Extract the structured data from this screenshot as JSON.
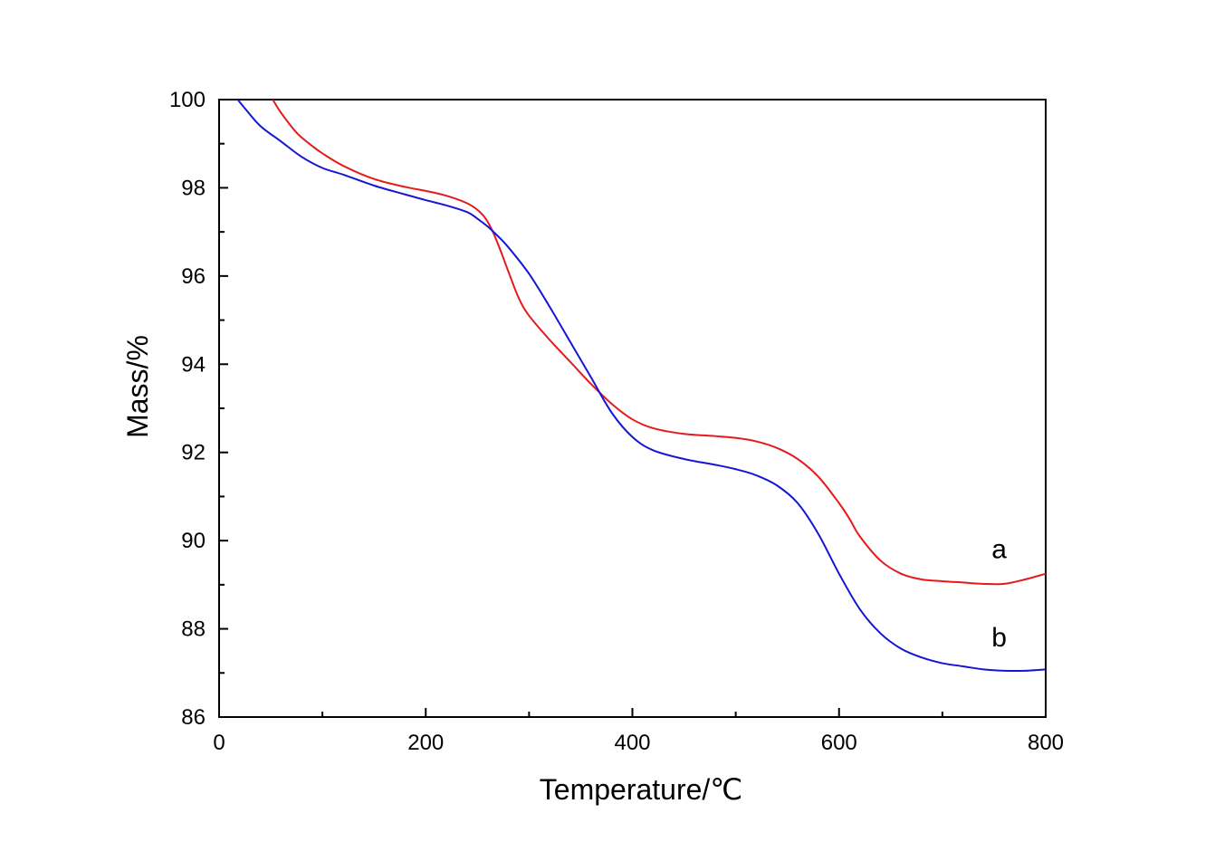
{
  "chart_data": {
    "type": "line",
    "title": "",
    "xlabel": "Temperature/℃",
    "ylabel": "Mass/%",
    "xlim": [
      0,
      800
    ],
    "ylim": [
      86,
      100
    ],
    "xticks": [
      0,
      200,
      400,
      600,
      800
    ],
    "yticks": [
      86,
      88,
      90,
      92,
      94,
      96,
      98,
      100
    ],
    "x_minor_step": 100,
    "y_minor_step": 1,
    "grid": false,
    "series": [
      {
        "name": "a",
        "color": "#e41a1c",
        "x": [
          52,
          60,
          75,
          90,
          100,
          120,
          150,
          180,
          200,
          220,
          240,
          250,
          258,
          265,
          272,
          280,
          290,
          300,
          320,
          340,
          360,
          380,
          400,
          420,
          450,
          480,
          500,
          520,
          540,
          560,
          580,
          600,
          610,
          620,
          640,
          660,
          680,
          700,
          720,
          740,
          760,
          780,
          800
        ],
        "y": [
          100,
          99.7,
          99.25,
          98.95,
          98.78,
          98.5,
          98.2,
          98.02,
          97.93,
          97.82,
          97.65,
          97.5,
          97.3,
          97.0,
          96.6,
          96.1,
          95.5,
          95.1,
          94.55,
          94.05,
          93.55,
          93.1,
          92.75,
          92.55,
          92.42,
          92.37,
          92.33,
          92.25,
          92.1,
          91.85,
          91.45,
          90.85,
          90.5,
          90.1,
          89.55,
          89.25,
          89.12,
          89.08,
          89.05,
          89.02,
          89.02,
          89.12,
          89.25
        ]
      },
      {
        "name": "b",
        "color": "#1515d6",
        "x": [
          18,
          25,
          40,
          60,
          80,
          100,
          120,
          150,
          180,
          200,
          220,
          240,
          250,
          260,
          270,
          280,
          300,
          320,
          340,
          360,
          380,
          400,
          420,
          450,
          480,
          500,
          520,
          540,
          560,
          580,
          600,
          620,
          640,
          660,
          680,
          700,
          720,
          740,
          760,
          780,
          800
        ],
        "y": [
          100,
          99.8,
          99.4,
          99.05,
          98.7,
          98.45,
          98.3,
          98.05,
          97.85,
          97.72,
          97.6,
          97.45,
          97.3,
          97.12,
          96.9,
          96.65,
          96.05,
          95.3,
          94.5,
          93.7,
          92.9,
          92.35,
          92.05,
          91.85,
          91.72,
          91.62,
          91.48,
          91.25,
          90.85,
          90.15,
          89.25,
          88.45,
          87.9,
          87.55,
          87.35,
          87.22,
          87.15,
          87.08,
          87.05,
          87.05,
          87.08
        ]
      }
    ],
    "annotations": [
      {
        "text": "a",
        "x": 755,
        "y": 89.6
      },
      {
        "text": "b",
        "x": 755,
        "y": 87.6
      }
    ]
  }
}
